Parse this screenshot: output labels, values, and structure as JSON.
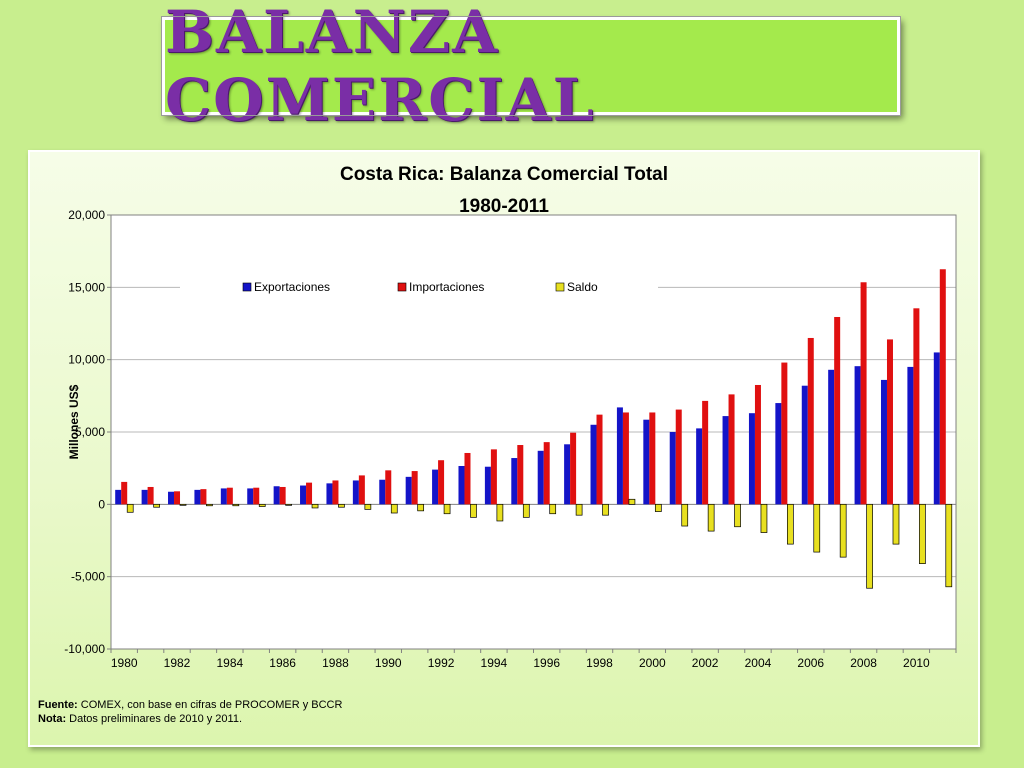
{
  "slide": {
    "title": "BALANZA COMERCIAL"
  },
  "notes": {
    "source_label": "Fuente:",
    "source_text": "COMEX, con base en cifras de PROCOMER y BCCR",
    "note_label": "Nota:",
    "note_text": "Datos preliminares de 2010 y 2011."
  },
  "colors": {
    "exportaciones": "#1414c8",
    "importaciones": "#e01010",
    "saldo": "#e8e020"
  },
  "chart_data": {
    "type": "bar",
    "title": "Costa Rica: Balanza Comercial Total",
    "subtitle": "1980-2011",
    "xlabel": "",
    "ylabel": "Millones US$",
    "ylim": [
      -10000,
      20000
    ],
    "yticks": [
      20000,
      15000,
      10000,
      5000,
      0,
      -5000,
      -10000
    ],
    "ytick_labels": [
      "20,000",
      "15,000",
      "10,000",
      "5,000",
      "0",
      "-5,000",
      "-10,000"
    ],
    "grid": true,
    "legend_position": "top-center",
    "x_tick_labels": [
      "1980",
      "1982",
      "1984",
      "1986",
      "1988",
      "1990",
      "1992",
      "1994",
      "1996",
      "1998",
      "2000",
      "2002",
      "2004",
      "2006",
      "2008",
      "2010"
    ],
    "categories": [
      "1980",
      "1981",
      "1982",
      "1983",
      "1984",
      "1985",
      "1986",
      "1987",
      "1988",
      "1989",
      "1990",
      "1991",
      "1992",
      "1993",
      "1994",
      "1995",
      "1996",
      "1997",
      "1998",
      "1999",
      "2000",
      "2001",
      "2002",
      "2003",
      "2004",
      "2005",
      "2006",
      "2007",
      "2008",
      "2009",
      "2010",
      "2011"
    ],
    "series": [
      {
        "name": "Exportaciones",
        "values": [
          1000,
          1000,
          870,
          1000,
          1100,
          1100,
          1250,
          1300,
          1450,
          1650,
          1700,
          1900,
          2400,
          2650,
          2600,
          3200,
          3700,
          4150,
          5500,
          6700,
          5850,
          5000,
          5250,
          6100,
          6300,
          7000,
          8200,
          9300,
          9550,
          8600,
          9500,
          10500
        ]
      },
      {
        "name": "Importaciones",
        "values": [
          1550,
          1200,
          900,
          1050,
          1150,
          1150,
          1200,
          1500,
          1650,
          2000,
          2350,
          2300,
          3050,
          3550,
          3800,
          4100,
          4300,
          4950,
          6200,
          6350,
          6350,
          6550,
          7150,
          7600,
          8250,
          9800,
          11500,
          12950,
          15350,
          11400,
          13550,
          16250
        ]
      },
      {
        "name": "Saldo",
        "values": [
          -550,
          -200,
          -50,
          -100,
          -100,
          -150,
          -50,
          -250,
          -200,
          -350,
          -600,
          -450,
          -650,
          -900,
          -1150,
          -900,
          -650,
          -750,
          -750,
          350,
          -500,
          -1500,
          -1850,
          -1550,
          -1950,
          -2750,
          -3300,
          -3650,
          -5800,
          -2750,
          -4100,
          -5700
        ]
      }
    ]
  }
}
